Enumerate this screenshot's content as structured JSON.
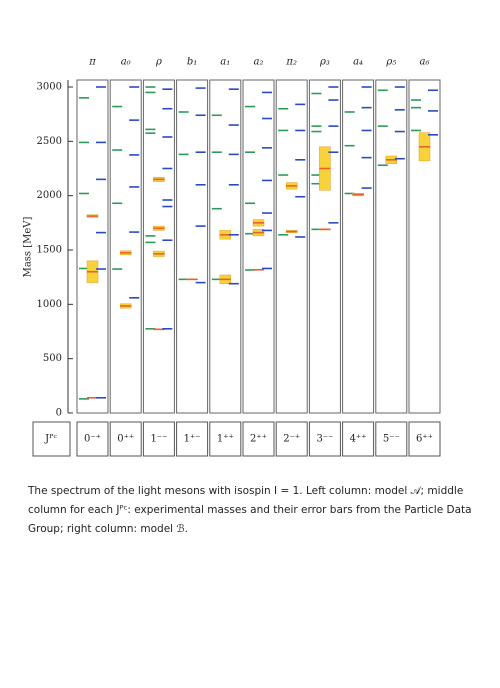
{
  "chart_data": {
    "type": "spectrum",
    "ylabel": "Mass [MeV]",
    "ylim": [
      0,
      3000
    ],
    "yticks": [
      0,
      500,
      1000,
      1500,
      2000,
      2500,
      3000
    ],
    "jpc_header": "Jᴾᶜ",
    "colors": {
      "model_a": "#2e9a5a",
      "experiment": "#e8632a",
      "error": "#f7d23a",
      "model_b": "#2a4bbf"
    },
    "columns": [
      {
        "label": "π",
        "jpc": "0⁻⁺",
        "model_a": [
          130,
          1330,
          2020,
          2490,
          2900
        ],
        "experiment": [
          140,
          1300,
          1812
        ],
        "errors": [
          0,
          100,
          12
        ],
        "model_b": [
          140,
          1325,
          1660,
          2150,
          2490,
          3000
        ]
      },
      {
        "label": "a₀",
        "jpc": "0⁺⁺",
        "model_a": [
          1325,
          1930,
          2420,
          2820
        ],
        "experiment": [
          985,
          1474
        ],
        "errors": [
          20,
          19
        ],
        "model_b": [
          1060,
          1665,
          2080,
          2375,
          2695,
          3000
        ]
      },
      {
        "label": "ρ",
        "jpc": "1⁻⁻",
        "model_a": [
          775,
          1570,
          1630,
          2575,
          2610,
          2950,
          3000
        ],
        "experiment": [
          770,
          1465,
          1700,
          2150
        ],
        "errors": [
          1,
          25,
          20,
          20
        ],
        "model_b": [
          775,
          1590,
          1900,
          1960,
          2250,
          2540,
          2800,
          2980
        ]
      },
      {
        "label": "b₁",
        "jpc": "1⁺⁻",
        "model_a": [
          1230,
          2380,
          2770
        ],
        "experiment": [
          1230
        ],
        "errors": [
          3
        ],
        "model_b": [
          1200,
          1720,
          2100,
          2400,
          2740,
          2990
        ]
      },
      {
        "label": "a₁",
        "jpc": "1⁺⁺",
        "model_a": [
          1230,
          1880,
          2400,
          2740
        ],
        "experiment": [
          1230,
          1640
        ],
        "errors": [
          40,
          40
        ],
        "model_b": [
          1190,
          1640,
          2100,
          2380,
          2650,
          2980
        ]
      },
      {
        "label": "a₂",
        "jpc": "2⁺⁺",
        "model_a": [
          1316,
          1650,
          1930,
          2400,
          2820
        ],
        "experiment": [
          1318,
          1660,
          1750
        ],
        "errors": [
          2,
          30,
          30
        ],
        "model_b": [
          1330,
          1680,
          1840,
          2140,
          2440,
          2710,
          2950
        ]
      },
      {
        "label": "π₂",
        "jpc": "2⁻⁺",
        "model_a": [
          1640,
          2190,
          2600,
          2800
        ],
        "experiment": [
          1670,
          2090
        ],
        "errors": [
          10,
          30
        ],
        "model_b": [
          1620,
          1990,
          2330,
          2600,
          2840
        ]
      },
      {
        "label": "ρ₃",
        "jpc": "3⁻⁻",
        "model_a": [
          1690,
          2110,
          2190,
          2590,
          2640,
          2940
        ],
        "experiment": [
          1690,
          2250
        ],
        "errors": [
          5,
          200
        ],
        "model_b": [
          1750,
          2400,
          2640,
          2880,
          3000
        ]
      },
      {
        "label": "a₄",
        "jpc": "4⁺⁺",
        "model_a": [
          2020,
          2460,
          2770
        ],
        "experiment": [
          2010
        ],
        "errors": [
          12
        ],
        "model_b": [
          2070,
          2350,
          2600,
          2810,
          3000
        ]
      },
      {
        "label": "ρ₅",
        "jpc": "5⁻⁻",
        "model_a": [
          2280,
          2640,
          2970
        ],
        "experiment": [
          2330
        ],
        "errors": [
          35
        ],
        "model_b": [
          2340,
          2590,
          2790,
          3000
        ]
      },
      {
        "label": "a₆",
        "jpc": "6⁺⁺",
        "model_a": [
          2600,
          2810,
          2880
        ],
        "experiment": [
          2450
        ],
        "errors": [
          130
        ],
        "model_b": [
          2560,
          2780,
          2970
        ]
      }
    ],
    "caption": "The spectrum of the light mesons with isospin I = 1. Left column: model 𝒜; middle column for each Jᴾᶜ: experimental masses and their error bars from the Particle Data Group; right column: model ℬ."
  }
}
